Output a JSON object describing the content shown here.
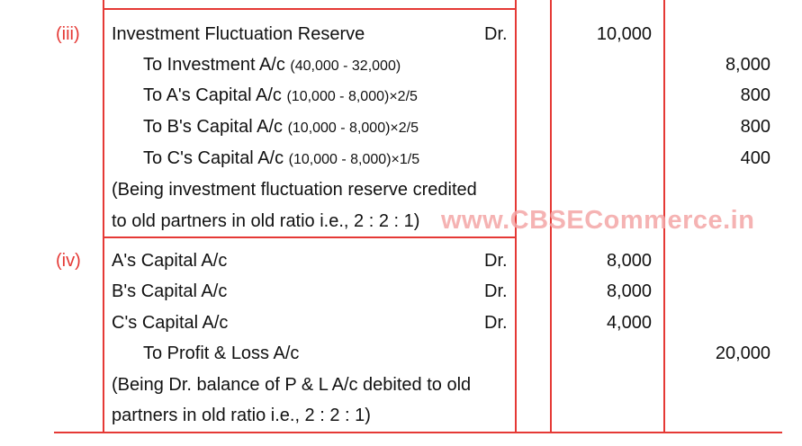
{
  "watermark": "www.CBSECommerce.in",
  "entries": [
    {
      "number": "(iii)",
      "lines": [
        {
          "particular": "Investment Fluctuation Reserve",
          "note": "",
          "dr": "Dr.",
          "debit": "10,000",
          "credit": ""
        },
        {
          "particular": "To Investment A/c",
          "note": "(40,000 - 32,000)",
          "dr": "",
          "debit": "",
          "credit": "8,000"
        },
        {
          "particular": "To A's Capital A/c",
          "note": "(10,000 - 8,000)×2/5",
          "dr": "",
          "debit": "",
          "credit": "800"
        },
        {
          "particular": "To B's Capital A/c",
          "note": "(10,000 - 8,000)×2/5",
          "dr": "",
          "debit": "",
          "credit": "800"
        },
        {
          "particular": "To C's Capital A/c",
          "note": "(10,000 - 8,000)×1/5",
          "dr": "",
          "debit": "",
          "credit": "400"
        }
      ],
      "narration": [
        "(Being investment fluctuation reserve credited",
        "to old partners in old ratio i.e., 2 : 2 : 1)"
      ]
    },
    {
      "number": "(iv)",
      "lines": [
        {
          "particular": "A's Capital A/c",
          "note": "",
          "dr": "Dr.",
          "debit": "8,000",
          "credit": ""
        },
        {
          "particular": "B's Capital A/c",
          "note": "",
          "dr": "Dr.",
          "debit": "8,000",
          "credit": ""
        },
        {
          "particular": "C's Capital A/c",
          "note": "",
          "dr": "Dr.",
          "debit": "4,000",
          "credit": ""
        },
        {
          "particular": "To Profit & Loss A/c",
          "note": "",
          "dr": "",
          "debit": "",
          "credit": "20,000"
        }
      ],
      "narration": [
        "(Being Dr. balance of P & L A/c debited to old",
        "partners in old ratio i.e., 2 : 2 : 1)"
      ]
    }
  ]
}
